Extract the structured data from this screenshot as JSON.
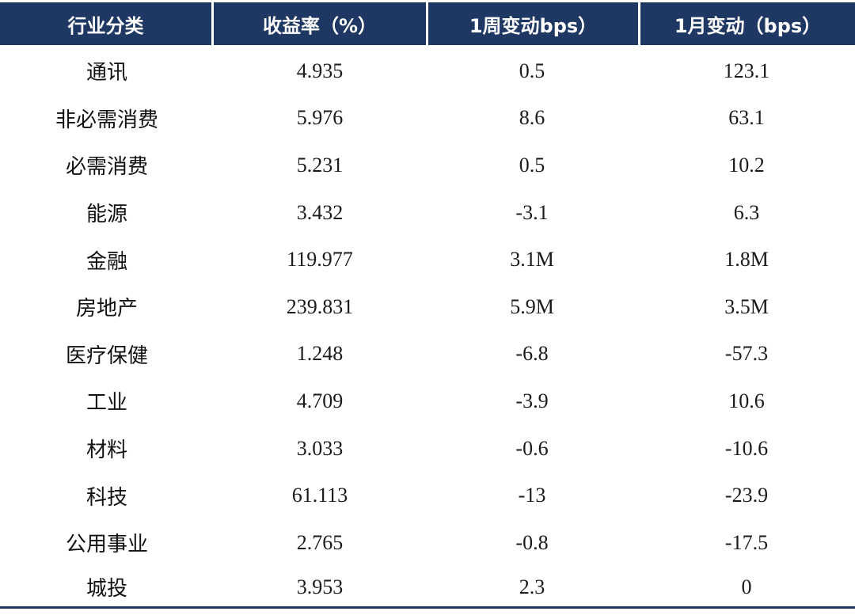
{
  "headers": [
    "行业分类",
    "收益率（%）",
    "1周变动bps）",
    "1月变动（bps）"
  ],
  "rows": [
    [
      "通讯",
      "4.935",
      "0.5",
      "123.1"
    ],
    [
      "非必需消费",
      "5.976",
      "8.6",
      "63.1"
    ],
    [
      "必需消费",
      "5.231",
      "0.5",
      "10.2"
    ],
    [
      "能源",
      "3.432",
      "-3.1",
      "6.3"
    ],
    [
      "金融",
      "119.977",
      "3.1M",
      "1.8M"
    ],
    [
      "房地产",
      "239.831",
      "5.9M",
      "3.5M"
    ],
    [
      "医疗保健",
      "1.248",
      "-6.8",
      "-57.3"
    ],
    [
      "工业",
      "4.709",
      "-3.9",
      "10.6"
    ],
    [
      "材料",
      "3.033",
      "-0.6",
      "-10.6"
    ],
    [
      "科技",
      "61.113",
      "-13",
      "-23.9"
    ],
    [
      "公用事业",
      "2.765",
      "-0.8",
      "-17.5"
    ],
    [
      "城投",
      "3.953",
      "2.3",
      "0"
    ]
  ],
  "colors": {
    "header_bg": "#1f3763",
    "header_text": "#ffffff",
    "rule": "#1f3763"
  }
}
